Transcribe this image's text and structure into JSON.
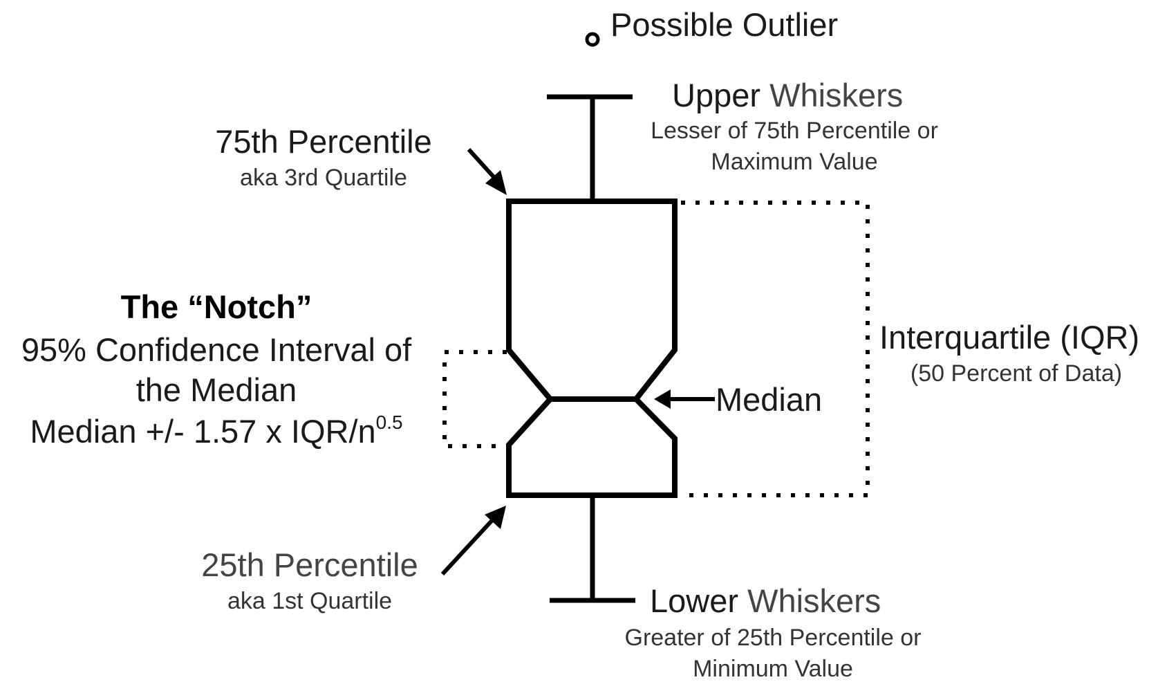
{
  "outlier": {
    "label": "Possible Outlier"
  },
  "upper_whiskers": {
    "title_word1": "Upper",
    "title_word2": "Whiskers",
    "desc_line1": "Lesser of 75th Percentile or",
    "desc_line2": "Maximum Value"
  },
  "percentile_75": {
    "title": "75th Percentile",
    "subtitle": "aka 3rd Quartile"
  },
  "notch": {
    "title": "The “Notch”",
    "line1": "95% Confidence Interval of",
    "line2": "the Median",
    "formula_prefix": "Median +/- 1.57 x IQR/n",
    "formula_exponent": "0.5"
  },
  "median": {
    "label": "Median"
  },
  "iqr": {
    "title": "Interquartile (IQR)",
    "subtitle": "(50 Percent of Data)"
  },
  "percentile_25": {
    "title": "25th Percentile",
    "subtitle": "aka 1st Quartile"
  },
  "lower_whiskers": {
    "title_word1": "Lower",
    "title_word2": "Whiskers",
    "desc_line1": "Greater of 25th Percentile or",
    "desc_line2": "Minimum Value"
  },
  "colors": {
    "stroke": "#000000",
    "text": "#1a1a1a",
    "secondary_text": "#444444"
  }
}
